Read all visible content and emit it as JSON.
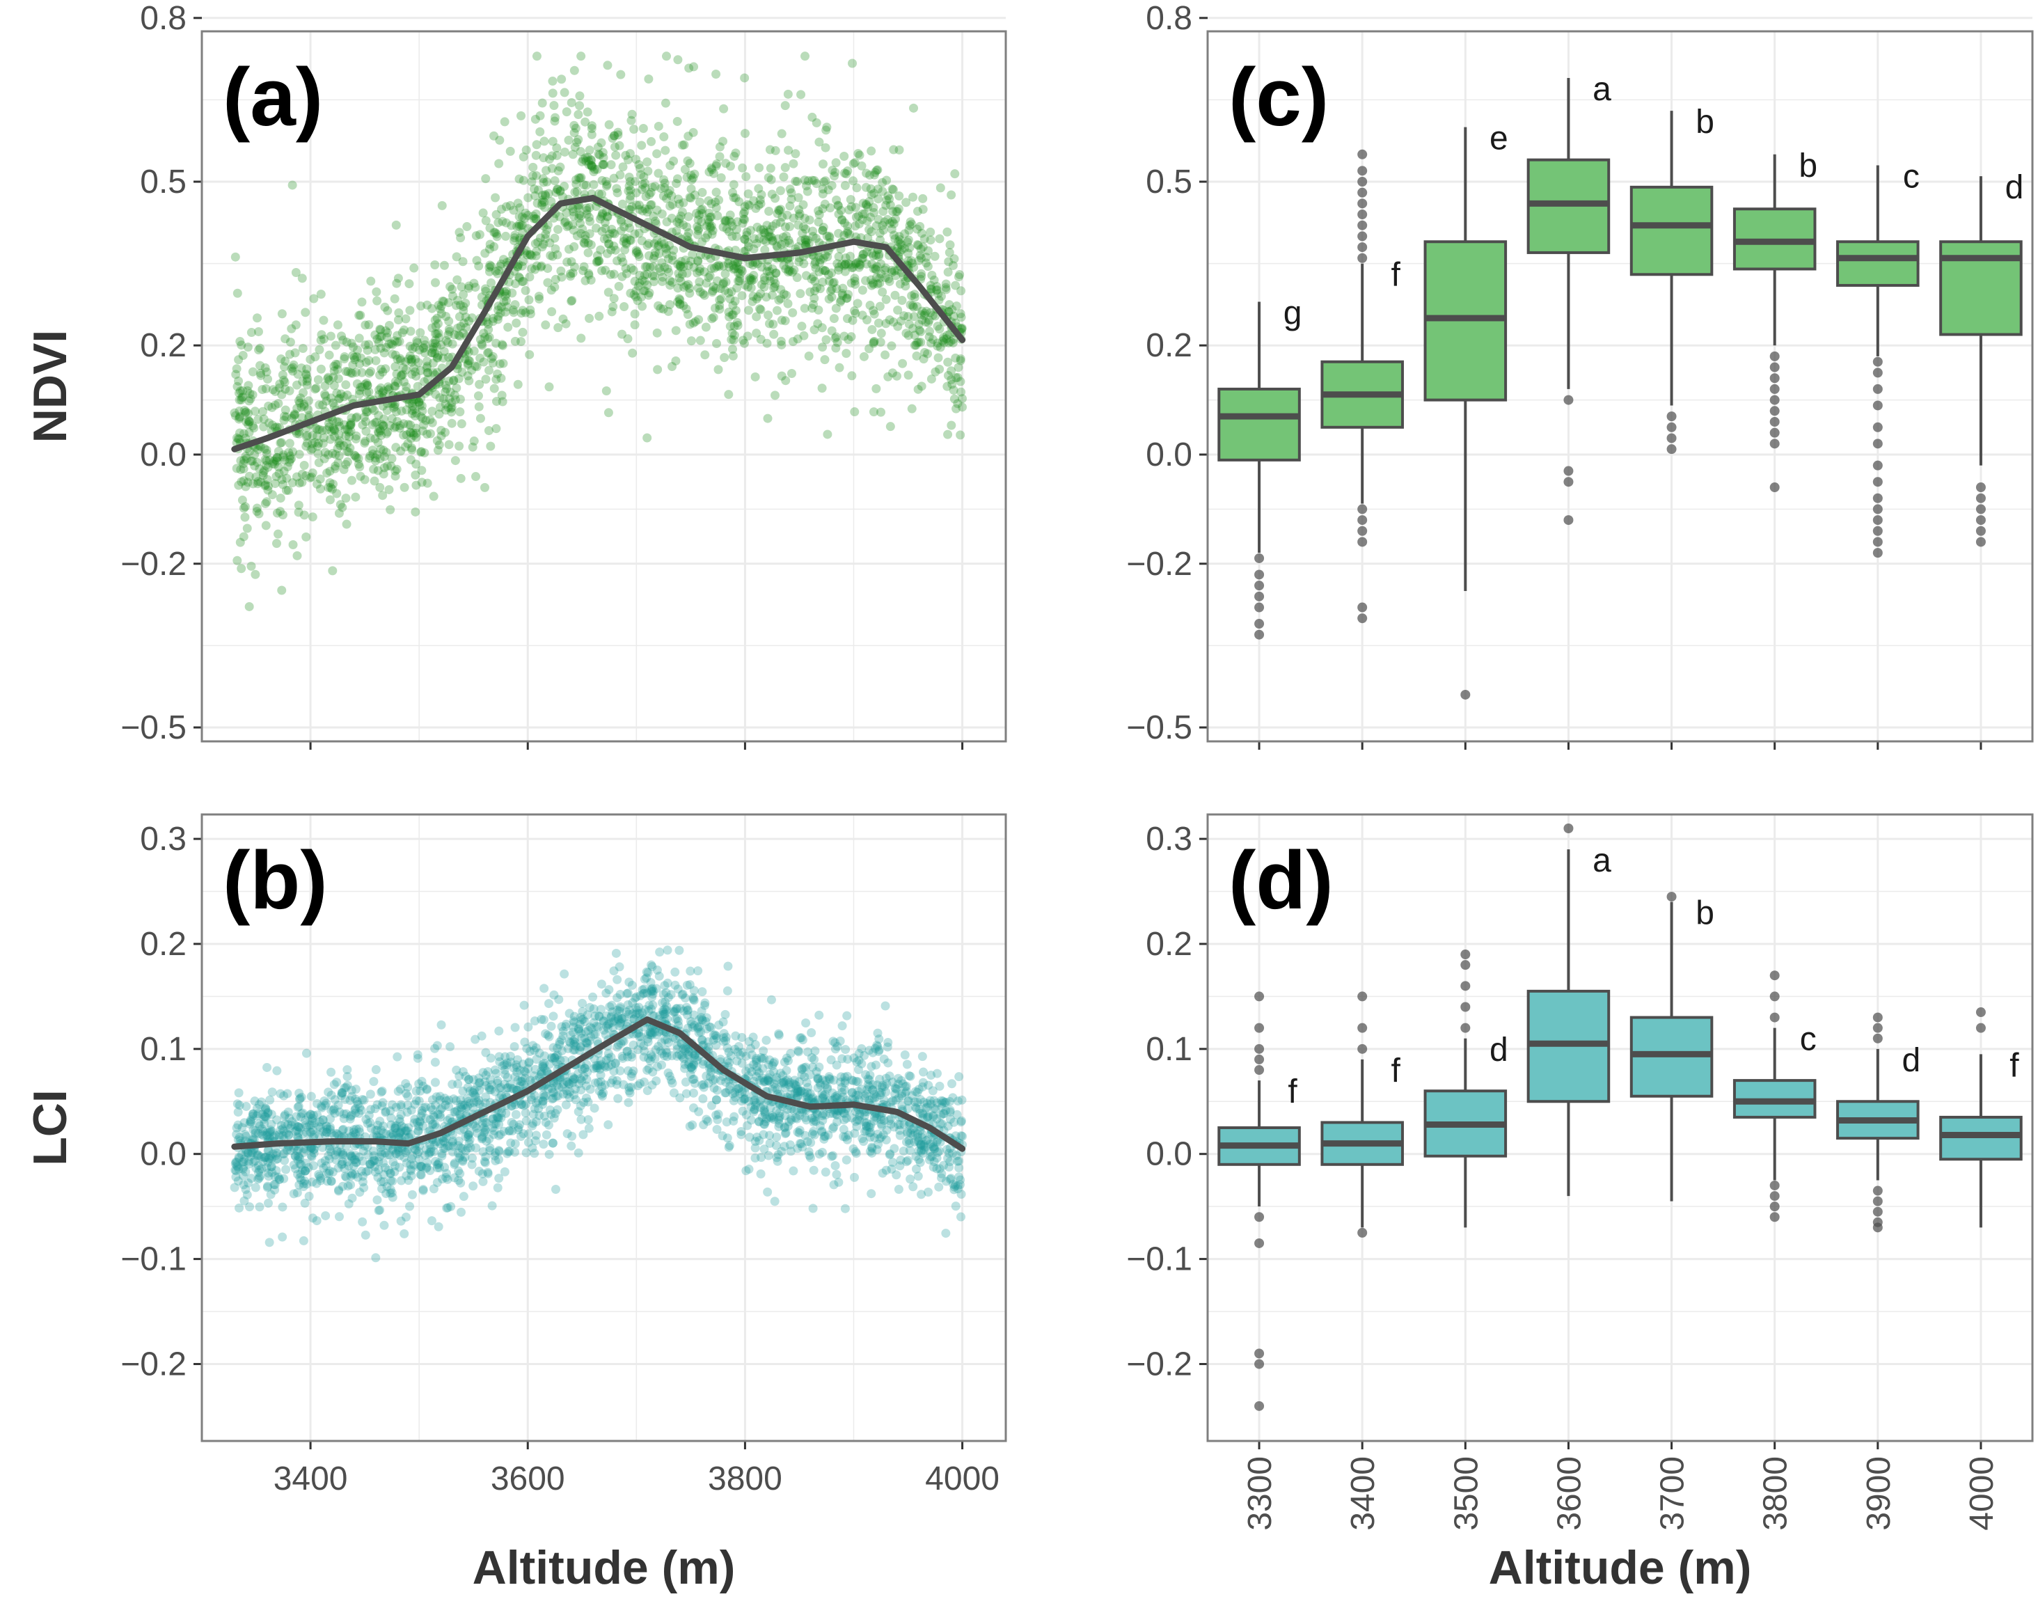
{
  "colors": {
    "ndvi_points": "#1a8a1a",
    "lci_points": "#1f9a9a",
    "ndvi_box": "#74c476",
    "lci_box": "#6cc3c3",
    "smooth_line": "#4d4d4d",
    "box_line": "#4d4d4d",
    "grid": "#ebebeb",
    "panel_border": "#7f7f7f"
  },
  "chart_data": [
    {
      "panel": "(a)",
      "type": "scatter",
      "ylabel": "NDVI",
      "xlabel": "",
      "xlim": [
        3300,
        4040
      ],
      "ylim": [
        -0.5,
        0.75
      ],
      "xticks": [
        3400,
        3600,
        3800,
        4000
      ],
      "yticks": [
        -0.5,
        -0.2,
        0.0,
        0.2,
        0.5,
        0.8
      ],
      "ytick_labels": [
        "−0.5",
        "−0.2",
        "0.0",
        "0.2",
        "0.5",
        "0.8"
      ],
      "grid": true,
      "smooth": {
        "x": [
          3330,
          3360,
          3400,
          3440,
          3470,
          3500,
          3530,
          3560,
          3600,
          3630,
          3660,
          3700,
          3750,
          3800,
          3850,
          3900,
          3930,
          3960,
          4000
        ],
        "y": [
          0.01,
          0.03,
          0.06,
          0.09,
          0.1,
          0.11,
          0.16,
          0.26,
          0.4,
          0.46,
          0.47,
          0.43,
          0.38,
          0.36,
          0.37,
          0.39,
          0.38,
          0.31,
          0.21
        ]
      },
      "cloud": {
        "x": [
          3330,
          3360,
          3400,
          3440,
          3470,
          3500,
          3530,
          3560,
          3600,
          3630,
          3660,
          3700,
          3750,
          3800,
          3850,
          3900,
          3930,
          3960,
          4000
        ],
        "y": [
          0.01,
          0.03,
          0.06,
          0.09,
          0.1,
          0.11,
          0.16,
          0.26,
          0.4,
          0.46,
          0.47,
          0.43,
          0.38,
          0.36,
          0.37,
          0.39,
          0.38,
          0.31,
          0.21
        ],
        "spread": 0.11,
        "count": 2600
      }
    },
    {
      "panel": "(b)",
      "type": "scatter",
      "ylabel": "LCI",
      "xlabel": "Altitude (m)",
      "xlim": [
        3300,
        4040
      ],
      "ylim": [
        -0.26,
        0.31
      ],
      "xticks": [
        3400,
        3600,
        3800,
        4000
      ],
      "xtick_labels": [
        "3400",
        "3600",
        "3800",
        "4000"
      ],
      "yticks": [
        -0.2,
        -0.1,
        0.0,
        0.1,
        0.2,
        0.3
      ],
      "ytick_labels": [
        "−0.2",
        "−0.1",
        "0.0",
        "0.1",
        "0.2",
        "0.3"
      ],
      "grid": true,
      "smooth": {
        "x": [
          3330,
          3370,
          3420,
          3460,
          3490,
          3520,
          3560,
          3600,
          3640,
          3680,
          3710,
          3740,
          3780,
          3820,
          3860,
          3900,
          3940,
          3970,
          4000
        ],
        "y": [
          0.007,
          0.01,
          0.012,
          0.012,
          0.01,
          0.02,
          0.04,
          0.06,
          0.085,
          0.11,
          0.128,
          0.115,
          0.08,
          0.055,
          0.045,
          0.047,
          0.04,
          0.025,
          0.005
        ]
      },
      "cloud": {
        "x": [
          3330,
          3370,
          3420,
          3460,
          3490,
          3520,
          3560,
          3600,
          3640,
          3680,
          3710,
          3740,
          3780,
          3820,
          3860,
          3900,
          3940,
          3970,
          4000
        ],
        "y": [
          0.007,
          0.01,
          0.012,
          0.012,
          0.01,
          0.02,
          0.04,
          0.06,
          0.085,
          0.11,
          0.128,
          0.115,
          0.08,
          0.055,
          0.045,
          0.047,
          0.04,
          0.025,
          0.005
        ],
        "spread": 0.033,
        "count": 2600
      }
    },
    {
      "panel": "(c)",
      "type": "box",
      "ylabel": "",
      "xlabel": "",
      "ylim": [
        -0.5,
        0.75
      ],
      "yticks": [
        -0.5,
        -0.2,
        0.0,
        0.2,
        0.5,
        0.8
      ],
      "ytick_labels": [
        "−0.5",
        "−0.2",
        "0.0",
        "0.2",
        "0.5",
        "0.8"
      ],
      "grid": true,
      "categories": [
        "3300",
        "3400",
        "3500",
        "3600",
        "3700",
        "3800",
        "3900",
        "4000"
      ],
      "boxes": [
        {
          "q1": -0.01,
          "median": 0.07,
          "q3": 0.12,
          "whisker_low": -0.18,
          "whisker_high": 0.28,
          "letter": "g",
          "outliers": [
            -0.19,
            -0.22,
            -0.24,
            -0.26,
            -0.28,
            -0.31,
            -0.33
          ]
        },
        {
          "q1": 0.05,
          "median": 0.11,
          "q3": 0.17,
          "whisker_low": -0.09,
          "whisker_high": 0.35,
          "letter": "f",
          "outliers": [
            -0.1,
            -0.12,
            -0.14,
            -0.16,
            -0.28,
            -0.3,
            0.36,
            0.38,
            0.4,
            0.42,
            0.44,
            0.46,
            0.48,
            0.5,
            0.52,
            0.55
          ]
        },
        {
          "q1": 0.1,
          "median": 0.25,
          "q3": 0.39,
          "whisker_low": -0.25,
          "whisker_high": 0.6,
          "letter": "e",
          "outliers": [
            -0.44
          ]
        },
        {
          "q1": 0.37,
          "median": 0.46,
          "q3": 0.54,
          "whisker_low": 0.12,
          "whisker_high": 0.69,
          "letter": "a",
          "outliers": [
            0.1,
            -0.03,
            -0.05,
            -0.12
          ]
        },
        {
          "q1": 0.33,
          "median": 0.42,
          "q3": 0.49,
          "whisker_low": 0.09,
          "whisker_high": 0.63,
          "letter": "b",
          "outliers": [
            0.07,
            0.05,
            0.03,
            0.01
          ]
        },
        {
          "q1": 0.34,
          "median": 0.39,
          "q3": 0.45,
          "whisker_low": 0.2,
          "whisker_high": 0.55,
          "letter": "b",
          "outliers": [
            0.18,
            0.16,
            0.14,
            0.12,
            0.1,
            0.08,
            0.06,
            0.04,
            0.02,
            -0.06
          ]
        },
        {
          "q1": 0.31,
          "median": 0.36,
          "q3": 0.39,
          "whisker_low": 0.18,
          "whisker_high": 0.53,
          "letter": "c",
          "outliers": [
            0.17,
            0.15,
            0.12,
            0.09,
            0.05,
            0.02,
            -0.02,
            -0.05,
            -0.08,
            -0.1,
            -0.12,
            -0.14,
            -0.16,
            -0.18
          ]
        },
        {
          "q1": 0.22,
          "median": 0.36,
          "q3": 0.39,
          "whisker_low": -0.02,
          "whisker_high": 0.51,
          "letter": "d",
          "outliers": [
            -0.06,
            -0.08,
            -0.1,
            -0.12,
            -0.14,
            -0.16
          ]
        }
      ]
    },
    {
      "panel": "(d)",
      "type": "box",
      "ylabel": "",
      "xlabel": "Altitude (m)",
      "ylim": [
        -0.26,
        0.31
      ],
      "yticks": [
        -0.2,
        -0.1,
        0.0,
        0.1,
        0.2,
        0.3
      ],
      "ytick_labels": [
        "−0.2",
        "−0.1",
        "0.0",
        "0.1",
        "0.2",
        "0.3"
      ],
      "grid": true,
      "categories": [
        "3300",
        "3400",
        "3500",
        "3600",
        "3700",
        "3800",
        "3900",
        "4000"
      ],
      "boxes": [
        {
          "q1": -0.01,
          "median": 0.008,
          "q3": 0.025,
          "whisker_low": -0.05,
          "whisker_high": 0.07,
          "letter": "f",
          "outliers": [
            0.08,
            0.09,
            0.1,
            0.12,
            0.15,
            -0.06,
            -0.085,
            -0.19,
            -0.2,
            -0.24
          ]
        },
        {
          "q1": -0.01,
          "median": 0.01,
          "q3": 0.03,
          "whisker_low": -0.07,
          "whisker_high": 0.09,
          "letter": "f",
          "outliers": [
            0.1,
            0.12,
            0.15,
            -0.075
          ]
        },
        {
          "q1": -0.002,
          "median": 0.028,
          "q3": 0.06,
          "whisker_low": -0.07,
          "whisker_high": 0.11,
          "letter": "d",
          "outliers": [
            0.12,
            0.14,
            0.16,
            0.18,
            0.19
          ]
        },
        {
          "q1": 0.05,
          "median": 0.105,
          "q3": 0.155,
          "whisker_low": -0.04,
          "whisker_high": 0.29,
          "letter": "a",
          "outliers": [
            0.31
          ]
        },
        {
          "q1": 0.055,
          "median": 0.095,
          "q3": 0.13,
          "whisker_low": -0.045,
          "whisker_high": 0.24,
          "letter": "b",
          "outliers": [
            0.245
          ]
        },
        {
          "q1": 0.035,
          "median": 0.05,
          "q3": 0.07,
          "whisker_low": -0.025,
          "whisker_high": 0.12,
          "letter": "c",
          "outliers": [
            0.13,
            0.15,
            0.17,
            -0.03,
            -0.04,
            -0.05,
            -0.06
          ]
        },
        {
          "q1": 0.015,
          "median": 0.032,
          "q3": 0.05,
          "whisker_low": -0.025,
          "whisker_high": 0.1,
          "letter": "d",
          "outliers": [
            0.11,
            0.12,
            0.13,
            -0.035,
            -0.045,
            -0.055,
            -0.065,
            -0.07
          ]
        },
        {
          "q1": -0.005,
          "median": 0.018,
          "q3": 0.035,
          "whisker_low": -0.07,
          "whisker_high": 0.095,
          "letter": "f",
          "outliers": [
            0.12,
            0.135
          ]
        }
      ]
    }
  ]
}
